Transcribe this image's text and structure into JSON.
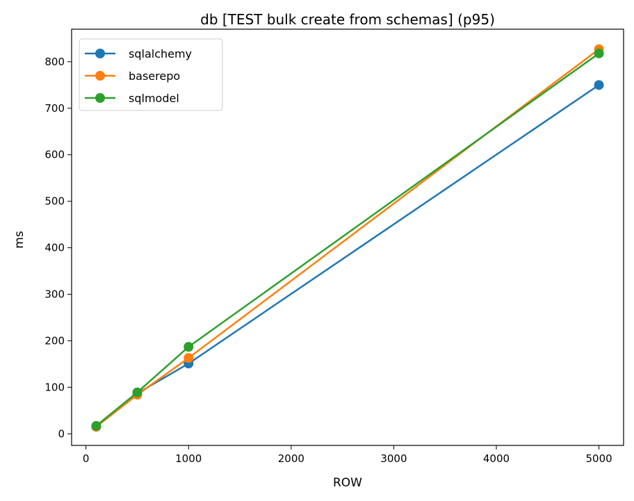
{
  "chart_data": {
    "type": "line",
    "title": "db [TEST bulk create from schemas] (p95)",
    "xlabel": "ROW",
    "ylabel": "ms",
    "x": [
      100,
      500,
      1000,
      5000
    ],
    "xlim": [
      -140,
      5240
    ],
    "ylim": [
      -25,
      870
    ],
    "xticks": [
      0,
      1000,
      2000,
      3000,
      4000,
      5000
    ],
    "yticks": [
      0,
      100,
      200,
      300,
      400,
      500,
      600,
      700,
      800
    ],
    "grid": false,
    "legend_position": "top-left",
    "series": [
      {
        "name": "sqlalchemy",
        "color": "#1f77b4",
        "values": [
          15,
          87,
          151,
          750
        ]
      },
      {
        "name": "baserepo",
        "color": "#ff7f0e",
        "values": [
          15,
          84,
          163,
          827
        ]
      },
      {
        "name": "sqlmodel",
        "color": "#2ca02c",
        "values": [
          17,
          89,
          187,
          818
        ]
      }
    ]
  }
}
